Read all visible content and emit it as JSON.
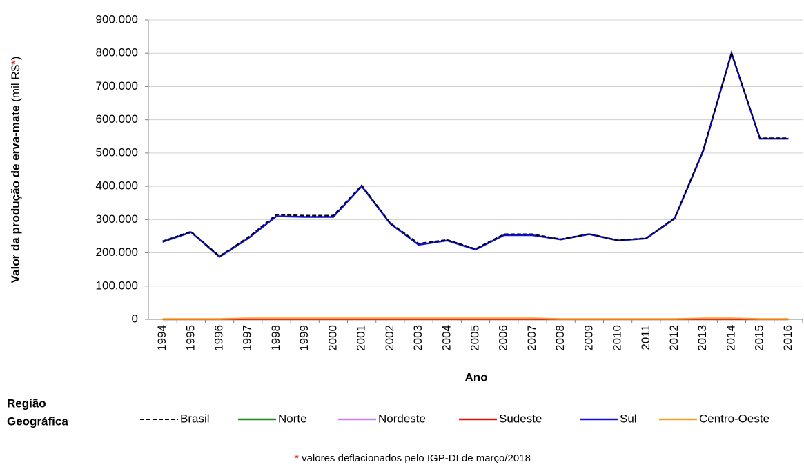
{
  "chart_data": {
    "type": "line",
    "y_label": "Valor da produção de erva-mate",
    "y_unit_open": "(mil R$",
    "asterisk": "*",
    "y_unit_close": ")",
    "x_label": "Ano",
    "legend_title": [
      "Região",
      "Geográfica"
    ],
    "footnote": "valores  deflacionados  pelo IGP-DI  de março/2018",
    "categories": [
      "1994",
      "1995",
      "1996",
      "1997",
      "1998",
      "1999",
      "2000",
      "2001",
      "2002",
      "2003",
      "2004",
      "2005",
      "2006",
      "2007",
      "2008",
      "2009",
      "2010",
      "2011",
      "2012",
      "2013",
      "2014",
      "2015",
      "2016"
    ],
    "ylim": [
      0,
      900000
    ],
    "yticks": [
      0,
      {
        "value": 100000,
        "label": "100.000"
      },
      {
        "value": 200000,
        "label": "200.000"
      },
      {
        "value": 300000,
        "label": "300.000"
      },
      {
        "value": 400000,
        "label": "400.000"
      },
      {
        "value": 500000,
        "label": "500.000"
      },
      {
        "value": 600000,
        "label": "600.000"
      },
      {
        "value": 700000,
        "label": "700.000"
      },
      {
        "value": 800000,
        "label": "800.000"
      },
      {
        "value": 900000,
        "label": "900.000"
      }
    ],
    "grid": true,
    "series": [
      {
        "name": "Brasil",
        "color": "#000000",
        "dashed": true,
        "values": [
          235000,
          264000,
          190000,
          246000,
          315000,
          312000,
          312000,
          403000,
          290000,
          228000,
          239000,
          212000,
          256000,
          256000,
          241000,
          257000,
          238000,
          244000,
          305000,
          508000,
          802000,
          545000,
          545000
        ]
      },
      {
        "name": "Norte",
        "color": "#1a8a1a",
        "values": [
          0,
          0,
          0,
          0,
          0,
          0,
          0,
          0,
          0,
          0,
          0,
          0,
          0,
          0,
          0,
          0,
          0,
          0,
          0,
          0,
          0,
          0,
          0
        ]
      },
      {
        "name": "Nordeste",
        "color": "#c77ef0",
        "values": [
          0,
          0,
          0,
          0,
          0,
          0,
          0,
          0,
          0,
          0,
          0,
          0,
          0,
          0,
          0,
          0,
          0,
          0,
          0,
          0,
          0,
          0,
          0
        ]
      },
      {
        "name": "Sudeste",
        "color": "#e01010",
        "values": [
          500,
          500,
          500,
          1000,
          1000,
          1000,
          1000,
          1000,
          1000,
          1000,
          1000,
          1000,
          1000,
          1000,
          500,
          500,
          500,
          500,
          500,
          1000,
          1000,
          500,
          500
        ]
      },
      {
        "name": "Sul",
        "color": "#1010e0",
        "values": [
          233000,
          262000,
          188000,
          243000,
          310000,
          308000,
          308000,
          400000,
          288000,
          224000,
          237000,
          210000,
          253000,
          253000,
          240000,
          256000,
          237000,
          243000,
          303000,
          505000,
          800000,
          543000,
          543000
        ]
      },
      {
        "name": "Centro-Oeste",
        "color": "#f5a020",
        "values": [
          1000,
          1000,
          1000,
          3000,
          3000,
          3000,
          3000,
          3000,
          3000,
          3000,
          3000,
          3000,
          3000,
          3000,
          1000,
          1000,
          1000,
          1000,
          1000,
          3000,
          3000,
          1000,
          1000
        ]
      }
    ]
  }
}
